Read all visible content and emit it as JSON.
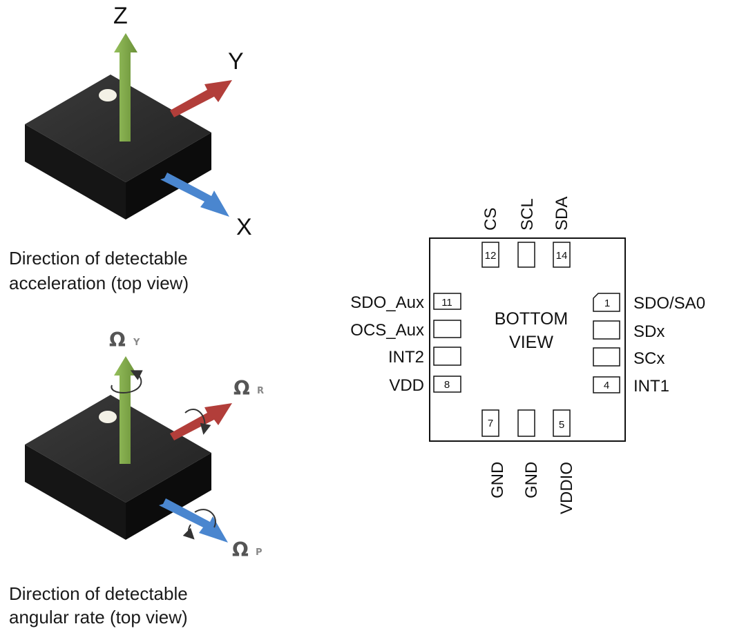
{
  "accel": {
    "axes": {
      "z": "Z",
      "y": "Y",
      "x": "X"
    },
    "caption_line1": "Direction of detectable",
    "caption_line2": "acceleration (top view)"
  },
  "gyro": {
    "axes": {
      "yaw_symbol": "Ω",
      "yaw_sub": "Y",
      "roll_symbol": "Ω",
      "roll_sub": "R",
      "pitch_symbol": "Ω",
      "pitch_sub": "P"
    },
    "caption_line1": "Direction of detectable",
    "caption_line2": "angular rate (top view)"
  },
  "package": {
    "center_line1": "BOTTOM",
    "center_line2": "VIEW",
    "top_signals": [
      "CS",
      "SCL",
      "SDA"
    ],
    "bottom_signals": [
      "GND",
      "GND",
      "VDDIO"
    ],
    "left_signals": [
      "SDO_Aux",
      "OCS_Aux",
      "INT2",
      "VDD"
    ],
    "right_signals": [
      "SDO/SA0",
      "SDx",
      "SCx",
      "INT1"
    ],
    "pin_numbers": {
      "top_left": "12",
      "top_right": "14",
      "left_top": "11",
      "left_bottom": "8",
      "right_top": "1",
      "right_bottom": "4",
      "bottom_left": "7",
      "bottom_right": "5"
    }
  },
  "colors": {
    "chip_top": "#2b2b2b",
    "chip_front": "#161616",
    "chip_side": "#0d0d0d",
    "z_arrow": "#7ea64a",
    "y_arrow": "#b23e3a",
    "x_arrow": "#4a86cf"
  }
}
